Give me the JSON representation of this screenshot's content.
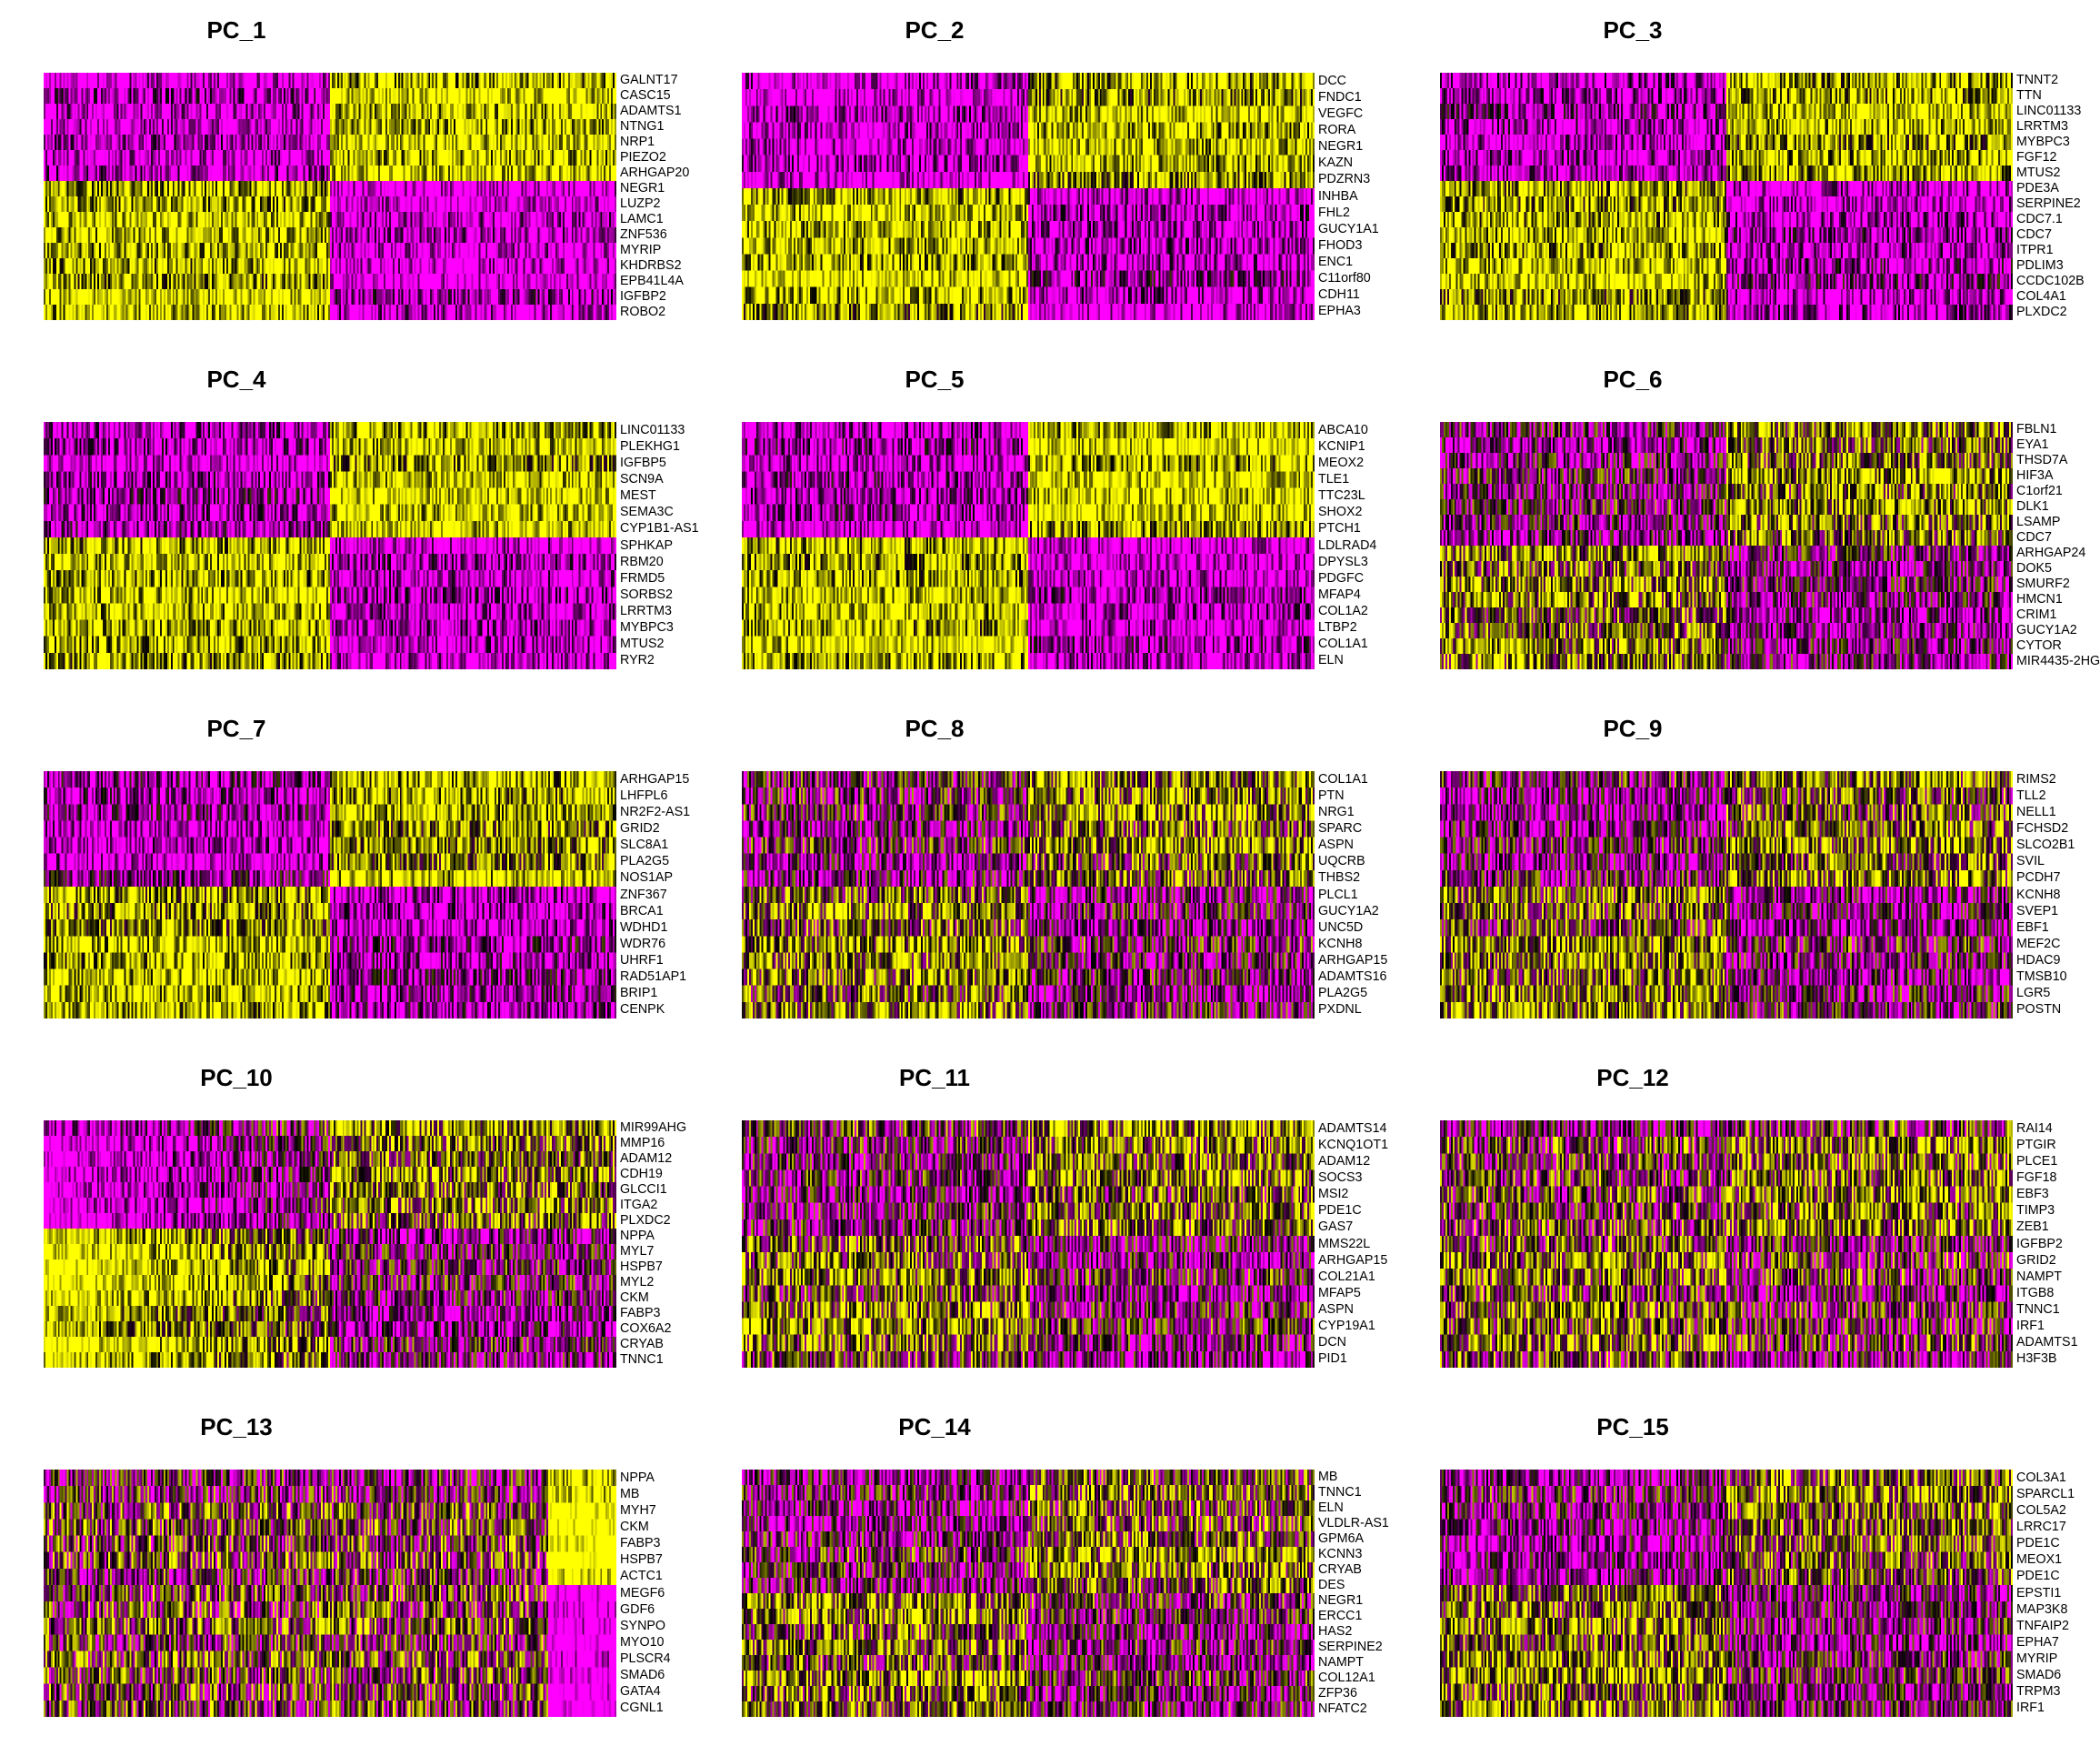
{
  "colors": {
    "high": "#FFFF00",
    "mid": "#000000",
    "low": "#FF00FF"
  },
  "chart_data": [
    {
      "type": "heatmap",
      "title": "PC_1",
      "genes": [
        "GALNT17",
        "CASC15",
        "ADAMTS1",
        "NTNG1",
        "NRP1",
        "PIEZO2",
        "ARHGAP20",
        "NEGR1",
        "LUZP2",
        "LAMC1",
        "ZNF536",
        "MYRIP",
        "KHDRBS2",
        "EPB41L4A",
        "IGFBP2",
        "ROBO2"
      ],
      "pattern": [
        0,
        0,
        0,
        0,
        0,
        0,
        0,
        1,
        1,
        1,
        1,
        1,
        1,
        1,
        1,
        1
      ],
      "split": 0.5,
      "contrast": 0.85,
      "shading": "block"
    },
    {
      "type": "heatmap",
      "title": "PC_2",
      "genes": [
        "DCC",
        "FNDC1",
        "VEGFC",
        "RORA",
        "NEGR1",
        "KAZN",
        "PDZRN3",
        "INHBA",
        "FHL2",
        "GUCY1A1",
        "FHOD3",
        "ENC1",
        "C11orf80",
        "CDH11",
        "EPHA3"
      ],
      "pattern": [
        0,
        0,
        0,
        0,
        0,
        0,
        0,
        1,
        1,
        1,
        1,
        1,
        1,
        1,
        1
      ],
      "split": 0.5,
      "contrast": 0.8,
      "shading": "block"
    },
    {
      "type": "heatmap",
      "title": "PC_3",
      "genes": [
        "TNNT2",
        "TTN",
        "LINC01133",
        "LRRTM3",
        "MYBPC3",
        "FGF12",
        "MTUS2",
        "PDE3A",
        "SERPINE2",
        "CDC7.1",
        "CDC7",
        "ITPR1",
        "PDLIM3",
        "CCDC102B",
        "COL4A1",
        "PLXDC2"
      ],
      "pattern": [
        0,
        0,
        0,
        0,
        0,
        0,
        0,
        1,
        1,
        1,
        1,
        1,
        1,
        1,
        1,
        1
      ],
      "split": 0.5,
      "contrast": 0.75,
      "shading": "block"
    },
    {
      "type": "heatmap",
      "title": "PC_4",
      "genes": [
        "LINC01133",
        "PLEKHG1",
        "IGFBP5",
        "SCN9A",
        "MEST",
        "SEMA3C",
        "CYP1B1-AS1",
        "SPHKAP",
        "RBM20",
        "FRMD5",
        "SORBS2",
        "LRRTM3",
        "MYBPC3",
        "MTUS2",
        "RYR2"
      ],
      "pattern": [
        0,
        0,
        0,
        0,
        0,
        0,
        0,
        1,
        1,
        1,
        1,
        1,
        1,
        1,
        1
      ],
      "split": 0.5,
      "contrast": 0.8,
      "shading": "block"
    },
    {
      "type": "heatmap",
      "title": "PC_5",
      "genes": [
        "ABCA10",
        "KCNIP1",
        "MEOX2",
        "TLE1",
        "TTC23L",
        "SHOX2",
        "PTCH1",
        "LDLRAD4",
        "DPYSL3",
        "PDGFC",
        "MFAP4",
        "COL1A2",
        "LTBP2",
        "COL1A1",
        "ELN"
      ],
      "pattern": [
        0,
        0,
        0,
        0,
        0,
        0,
        0,
        1,
        1,
        1,
        1,
        1,
        1,
        1,
        1
      ],
      "split": 0.5,
      "contrast": 0.8,
      "shading": "block"
    },
    {
      "type": "heatmap",
      "title": "PC_6",
      "genes": [
        "FBLN1",
        "EYA1",
        "THSD7A",
        "HIF3A",
        "C1orf21",
        "DLK1",
        "LSAMP",
        "CDC7",
        "ARHGAP24",
        "DOK5",
        "SMURF2",
        "HMCN1",
        "CRIM1",
        "GUCY1A2",
        "CYTOR",
        "MIR4435-2HG"
      ],
      "pattern": [
        0,
        0,
        0,
        0,
        0,
        0,
        0,
        0,
        1,
        1,
        1,
        1,
        1,
        1,
        1,
        1
      ],
      "split": 0.5,
      "contrast": 0.4,
      "shading": "block"
    },
    {
      "type": "heatmap",
      "title": "PC_7",
      "genes": [
        "ARHGAP15",
        "LHFPL6",
        "NR2F2-AS1",
        "GRID2",
        "SLC8A1",
        "PLA2G5",
        "NOS1AP",
        "ZNF367",
        "BRCA1",
        "WDHD1",
        "WDR76",
        "UHRF1",
        "RAD51AP1",
        "BRIP1",
        "CENPK"
      ],
      "pattern": [
        0,
        0,
        0,
        0,
        0,
        0,
        0,
        1,
        1,
        1,
        1,
        1,
        1,
        1,
        1
      ],
      "split": 0.5,
      "contrast": 0.7,
      "shading": "block"
    },
    {
      "type": "heatmap",
      "title": "PC_8",
      "genes": [
        "COL1A1",
        "PTN",
        "NRG1",
        "SPARC",
        "ASPN",
        "UQCRB",
        "THBS2",
        "PLCL1",
        "GUCY1A2",
        "UNC5D",
        "KCNH8",
        "ARHGAP15",
        "ADAMTS16",
        "PLA2G5",
        "PXDNL"
      ],
      "pattern": [
        0,
        0,
        0,
        0,
        0,
        0,
        0,
        1,
        1,
        1,
        1,
        1,
        1,
        1,
        1
      ],
      "split": 0.5,
      "contrast": 0.35,
      "shading": "block"
    },
    {
      "type": "heatmap",
      "title": "PC_9",
      "genes": [
        "RIMS2",
        "TLL2",
        "NELL1",
        "FCHSD2",
        "SLCO2B1",
        "SVIL",
        "PCDH7",
        "KCNH8",
        "SVEP1",
        "EBF1",
        "MEF2C",
        "HDAC9",
        "TMSB10",
        "LGR5",
        "POSTN"
      ],
      "pattern": [
        0,
        0,
        0,
        0,
        0,
        0,
        0,
        1,
        1,
        1,
        1,
        1,
        1,
        1,
        1
      ],
      "split": 0.5,
      "contrast": 0.35,
      "shading": "block"
    },
    {
      "type": "heatmap",
      "title": "PC_10",
      "genes": [
        "MIR99AHG",
        "MMP16",
        "ADAM12",
        "CDH19",
        "GLCCI1",
        "ITGA2",
        "PLXDC2",
        "NPPA",
        "MYL7",
        "HSPB7",
        "MYL2",
        "CKM",
        "FABP3",
        "COX6A2",
        "CRYAB",
        "TNNC1"
      ],
      "pattern": [
        0,
        0,
        0,
        0,
        0,
        0,
        0,
        1,
        1,
        1,
        1,
        1,
        1,
        1,
        1,
        1
      ],
      "split": 0.5,
      "contrast": 0.6,
      "shading": "gradient"
    },
    {
      "type": "heatmap",
      "title": "PC_11",
      "genes": [
        "ADAMTS14",
        "KCNQ1OT1",
        "ADAM12",
        "SOCS3",
        "MSI2",
        "PDE1C",
        "GAS7",
        "MMS22L",
        "ARHGAP15",
        "COL21A1",
        "MFAP5",
        "ASPN",
        "CYP19A1",
        "DCN",
        "PID1"
      ],
      "pattern": [
        0,
        0,
        0,
        0,
        0,
        0,
        0,
        1,
        1,
        1,
        1,
        1,
        1,
        1,
        1
      ],
      "split": 0.5,
      "contrast": 0.3,
      "shading": "block"
    },
    {
      "type": "heatmap",
      "title": "PC_12",
      "genes": [
        "RAI14",
        "PTGIR",
        "PLCE1",
        "FGF18",
        "EBF3",
        "TIMP3",
        "ZEB1",
        "IGFBP2",
        "GRID2",
        "NAMPT",
        "ITGB8",
        "TNNC1",
        "IRF1",
        "ADAMTS1",
        "H3F3B"
      ],
      "pattern": [
        0,
        0,
        0,
        0,
        0,
        0,
        0,
        1,
        1,
        1,
        1,
        1,
        1,
        1,
        1
      ],
      "split": 0.5,
      "contrast": 0.2,
      "shading": "block"
    },
    {
      "type": "heatmap",
      "title": "PC_13",
      "genes": [
        "NPPA",
        "MB",
        "MYH7",
        "CKM",
        "FABP3",
        "HSPB7",
        "ACTC1",
        "MEGF6",
        "GDF6",
        "SYNPO",
        "MYO10",
        "PLSCR4",
        "SMAD6",
        "GATA4",
        "CGNL1"
      ],
      "pattern": [
        1,
        1,
        1,
        1,
        1,
        1,
        1,
        0,
        0,
        0,
        0,
        0,
        0,
        0,
        0
      ],
      "split": 0.5,
      "contrast": 0.4,
      "shading": "rightband"
    },
    {
      "type": "heatmap",
      "title": "PC_14",
      "genes": [
        "MB",
        "TNNC1",
        "ELN",
        "VLDLR-AS1",
        "GPM6A",
        "KCNN3",
        "CRYAB",
        "DES",
        "NEGR1",
        "ERCC1",
        "HAS2",
        "SERPINE2",
        "NAMPT",
        "COL12A1",
        "ZFP36",
        "NFATC2"
      ],
      "pattern": [
        0,
        0,
        0,
        0,
        0,
        0,
        0,
        0,
        1,
        1,
        1,
        1,
        1,
        1,
        1,
        1
      ],
      "split": 0.5,
      "contrast": 0.3,
      "shading": "block"
    },
    {
      "type": "heatmap",
      "title": "PC_15",
      "genes": [
        "COL3A1",
        "SPARCL1",
        "COL5A2",
        "LRRC17",
        "PDE1C",
        "MEOX1",
        "PDE1C",
        "EPSTI1",
        "MAP3K8",
        "TNFAIP2",
        "EPHA7",
        "MYRIP",
        "SMAD6",
        "TRPM3",
        "IRF1"
      ],
      "pattern": [
        0,
        0,
        0,
        0,
        0,
        0,
        0,
        1,
        1,
        1,
        1,
        1,
        1,
        1,
        1
      ],
      "split": 0.5,
      "contrast": 0.35,
      "shading": "block"
    }
  ]
}
